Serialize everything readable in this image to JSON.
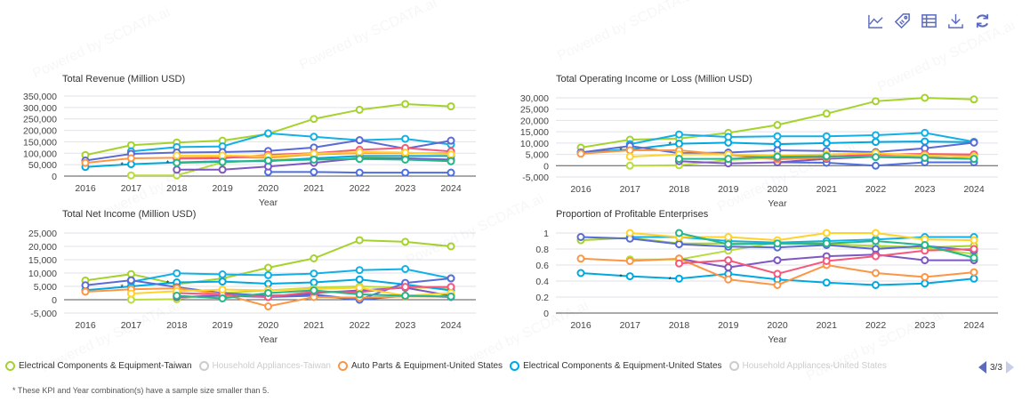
{
  "toolbar": {
    "icons": [
      "line-chart-icon",
      "tag-icon",
      "table-icon",
      "download-icon",
      "refresh-icon"
    ],
    "color": "#5b6bbf"
  },
  "watermark": "Powered by SCDATA.ai",
  "legend": {
    "items": [
      {
        "label": "Electrical Components & Equipment-Taiwan",
        "color": "#a5d22c",
        "active": true
      },
      {
        "label": "Household Appliances-Taiwan",
        "color": "#cccccc",
        "active": false
      },
      {
        "label": "Auto Parts & Equipment-United States",
        "color": "#fd9644",
        "active": true
      },
      {
        "label": "Electrical Components & Equipment-United States",
        "color": "#00a8e1",
        "active": true
      },
      {
        "label": "Household Appliances-United States",
        "color": "#cccccc",
        "active": false
      }
    ],
    "page": "3/3"
  },
  "footnote": "* These KPI and Year combination(s) have a sample size smaller than 5.",
  "chart_data": [
    {
      "type": "line",
      "title": "Total Revenue (Million USD)",
      "xlabel": "Year",
      "ylabel": "",
      "x": [
        2016,
        2017,
        2018,
        2019,
        2020,
        2021,
        2022,
        2023,
        2024
      ],
      "yticks": [
        "350,000",
        "300,000",
        "250,000",
        "200,000",
        "150,000",
        "100,000",
        "50,000",
        "0"
      ],
      "ylim": [
        0,
        350000
      ],
      "grid": true,
      "asterisk_years": [
        2017,
        2018
      ],
      "series": [
        {
          "name": "Electrical Components & Equipment-Taiwan",
          "color": "#a5d22c",
          "values": [
            92000,
            135000,
            147000,
            155000,
            185000,
            250000,
            290000,
            315000,
            305000
          ]
        },
        {
          "color": "#b8dc3c",
          "values": [
            null,
            3000,
            3000,
            60000,
            70000,
            78000,
            80000,
            78000,
            72000
          ]
        },
        {
          "name": "Electrical Components & Equipment-United States",
          "color": "#00a8e1",
          "values": [
            40000,
            52000,
            60000,
            65000,
            65000,
            78000,
            88000,
            88000,
            88000
          ]
        },
        {
          "color": "#12b0e6",
          "values": [
            null,
            108000,
            127000,
            130000,
            187000,
            172000,
            157000,
            163000,
            138000
          ]
        },
        {
          "color": "#5b6bd6",
          "values": [
            68000,
            97000,
            103000,
            105000,
            110000,
            125000,
            157000,
            120000,
            155000
          ]
        },
        {
          "color": "#4e6fe0",
          "values": [
            null,
            null,
            null,
            null,
            18000,
            18000,
            15000,
            15000,
            15000
          ]
        },
        {
          "color": "#7e57c2",
          "values": [
            null,
            null,
            28000,
            28000,
            42000,
            58000,
            78000,
            78000,
            72000
          ]
        },
        {
          "name": "Auto Parts & Equipment-United States",
          "color": "#fd9644",
          "values": [
            58000,
            78000,
            80000,
            82000,
            80000,
            95000,
            100000,
            100000,
            100000
          ]
        },
        {
          "color": "#f5587b",
          "values": [
            null,
            null,
            77000,
            78000,
            93000,
            100000,
            115000,
            123000,
            108000
          ]
        },
        {
          "color": "#ffd32a",
          "values": [
            null,
            null,
            90000,
            90000,
            87000,
            98000,
            105000,
            103000,
            95000
          ]
        },
        {
          "color": "#26b68a",
          "values": [
            null,
            null,
            58000,
            62000,
            68000,
            72000,
            75000,
            72000,
            65000
          ]
        }
      ]
    },
    {
      "type": "line",
      "title": "Total Operating Income or Loss (Million USD)",
      "xlabel": "Year",
      "ylabel": "",
      "x": [
        2016,
        2017,
        2018,
        2019,
        2020,
        2021,
        2022,
        2023,
        2024
      ],
      "yticks": [
        "30,000",
        "25,000",
        "20,000",
        "15,000",
        "10,000",
        "5,000",
        "0",
        "-5,000"
      ],
      "ylim": [
        -5000,
        30000
      ],
      "grid": true,
      "asterisk_years": [
        2017,
        2018
      ],
      "series": [
        {
          "name": "Electrical Components & Equipment-Taiwan",
          "color": "#a5d22c",
          "values": [
            8000,
            11500,
            12000,
            14500,
            18000,
            23000,
            28500,
            30000,
            29300
          ]
        },
        {
          "color": "#b8dc3c",
          "values": [
            null,
            0,
            200,
            2500,
            3500,
            4000,
            4000,
            4500,
            4000
          ]
        },
        {
          "name": "Electrical Components & Equipment-United States",
          "color": "#00a8e1",
          "values": [
            5800,
            7200,
            9700,
            10200,
            9500,
            10000,
            10500,
            10700,
            10400
          ]
        },
        {
          "color": "#12b0e6",
          "values": [
            null,
            9500,
            13800,
            12700,
            13000,
            13000,
            13500,
            14500,
            10600
          ]
        },
        {
          "color": "#5b6bd6",
          "values": [
            5800,
            8700,
            5500,
            5800,
            6800,
            6500,
            6000,
            7700,
            10200
          ]
        },
        {
          "color": "#4e6fe0",
          "values": [
            null,
            null,
            null,
            null,
            1500,
            1300,
            0,
            1500,
            1500
          ]
        },
        {
          "color": "#7e57c2",
          "values": [
            null,
            null,
            2000,
            1000,
            1500,
            3000,
            4000,
            3500,
            3000
          ]
        },
        {
          "name": "Auto Parts & Equipment-United States",
          "color": "#fd9644",
          "values": [
            5300,
            6800,
            6800,
            4800,
            2800,
            3500,
            4300,
            4000,
            4800
          ]
        },
        {
          "color": "#f5587b",
          "values": [
            null,
            null,
            null,
            5000,
            3500,
            4000,
            5000,
            5200,
            5000
          ]
        },
        {
          "color": "#ffd32a",
          "values": [
            null,
            4000,
            5000,
            5000,
            4500,
            5000,
            5500,
            4500,
            4000
          ]
        },
        {
          "color": "#26b68a",
          "values": [
            null,
            null,
            3000,
            3000,
            4000,
            4200,
            3800,
            3500,
            3000
          ]
        }
      ]
    },
    {
      "type": "line",
      "title": "Total Net Income (Million USD)",
      "xlabel": "Year",
      "ylabel": "",
      "x": [
        2016,
        2017,
        2018,
        2019,
        2020,
        2021,
        2022,
        2023,
        2024
      ],
      "yticks": [
        "25,000",
        "20,000",
        "15,000",
        "10,000",
        "5,000",
        "0",
        "-5,000"
      ],
      "ylim": [
        -5000,
        25000
      ],
      "grid": true,
      "asterisk_years": [
        2017,
        2018
      ],
      "series": [
        {
          "name": "Electrical Components & Equipment-Taiwan",
          "color": "#a5d22c",
          "values": [
            7200,
            9600,
            5800,
            8000,
            12000,
            15500,
            22300,
            21700,
            20000
          ]
        },
        {
          "color": "#b8dc3c",
          "values": [
            null,
            0,
            200,
            2500,
            3500,
            4500,
            5000,
            4500,
            4500
          ]
        },
        {
          "name": "Electrical Components & Equipment-United States",
          "color": "#00a8e1",
          "values": [
            3600,
            5000,
            6500,
            6800,
            6000,
            6500,
            7600,
            5700,
            3500
          ]
        },
        {
          "color": "#12b0e6",
          "values": [
            null,
            6700,
            9900,
            9500,
            9200,
            9800,
            11100,
            11500,
            8000
          ]
        },
        {
          "color": "#5b6bd6",
          "values": [
            5400,
            7300,
            4700,
            2500,
            1500,
            2000,
            0,
            6300,
            8000
          ]
        },
        {
          "color": "#4e6fe0",
          "values": [
            null,
            null,
            null,
            null,
            1000,
            1500,
            0,
            1500,
            1000
          ]
        },
        {
          "color": "#7e57c2",
          "values": [
            null,
            null,
            1000,
            1500,
            1000,
            2500,
            3500,
            4500,
            1500
          ]
        },
        {
          "name": "Auto Parts & Equipment-United States",
          "color": "#fd9644",
          "values": [
            3000,
            3900,
            4300,
            2100,
            -2500,
            1000,
            800,
            1200,
            1200
          ]
        },
        {
          "color": "#f5587b",
          "values": [
            null,
            null,
            2500,
            2000,
            1000,
            3000,
            2800,
            4800,
            4800
          ]
        },
        {
          "color": "#ffd32a",
          "values": [
            null,
            2300,
            3200,
            3800,
            3500,
            4000,
            4500,
            1500,
            2500
          ]
        },
        {
          "color": "#26b68a",
          "values": [
            null,
            null,
            1500,
            500,
            2500,
            3500,
            2000,
            1500,
            1200
          ]
        }
      ]
    },
    {
      "type": "line",
      "title": "Proportion of Profitable Enterprises",
      "xlabel": "Year",
      "ylabel": "",
      "x": [
        2016,
        2017,
        2018,
        2019,
        2020,
        2021,
        2022,
        2023,
        2024
      ],
      "yticks": [
        "1",
        "0.8",
        "0.6",
        "0.4",
        "0.2",
        "0"
      ],
      "ylim": [
        0,
        1
      ],
      "grid": true,
      "asterisk_years": [
        2017,
        2018
      ],
      "series": [
        {
          "name": "Electrical Components & Equipment-Taiwan",
          "color": "#a5d22c",
          "values": [
            0.91,
            0.94,
            0.87,
            0.87,
            0.87,
            0.86,
            0.84,
            0.82,
            0.84
          ]
        },
        {
          "color": "#b8dc3c",
          "values": [
            null,
            0.67,
            0.67,
            0.78,
            0.88,
            0.87,
            0.83,
            0.81,
            0.74
          ]
        },
        {
          "name": "Electrical Components & Equipment-United States",
          "color": "#00a8e1",
          "values": [
            0.5,
            0.46,
            0.43,
            0.49,
            0.42,
            0.38,
            0.35,
            0.37,
            0.43
          ]
        },
        {
          "color": "#12b0e6",
          "values": [
            null,
            0.95,
            0.95,
            0.9,
            0.88,
            0.9,
            0.92,
            0.95,
            0.95
          ]
        },
        {
          "color": "#5b6bd6",
          "values": [
            0.95,
            0.93,
            0.86,
            0.83,
            0.82,
            0.85,
            0.8,
            0.84,
            0.78
          ]
        },
        {
          "color": "#7e57c2",
          "values": [
            null,
            null,
            0.68,
            0.57,
            0.66,
            0.71,
            0.73,
            0.66,
            0.66
          ]
        },
        {
          "name": "Auto Parts & Equipment-United States",
          "color": "#fd9644",
          "values": [
            0.68,
            0.65,
            0.68,
            0.42,
            0.35,
            0.6,
            0.5,
            0.45,
            0.51
          ]
        },
        {
          "color": "#f5587b",
          "values": [
            null,
            null,
            0.62,
            0.66,
            0.49,
            0.65,
            0.71,
            0.78,
            0.8
          ]
        },
        {
          "color": "#ffd32a",
          "values": [
            null,
            1.0,
            0.95,
            0.95,
            0.91,
            1.0,
            1.0,
            0.92,
            0.91
          ]
        },
        {
          "color": "#26b68a",
          "values": [
            null,
            null,
            1.0,
            0.86,
            0.87,
            0.87,
            0.9,
            0.85,
            0.69
          ]
        }
      ]
    }
  ]
}
